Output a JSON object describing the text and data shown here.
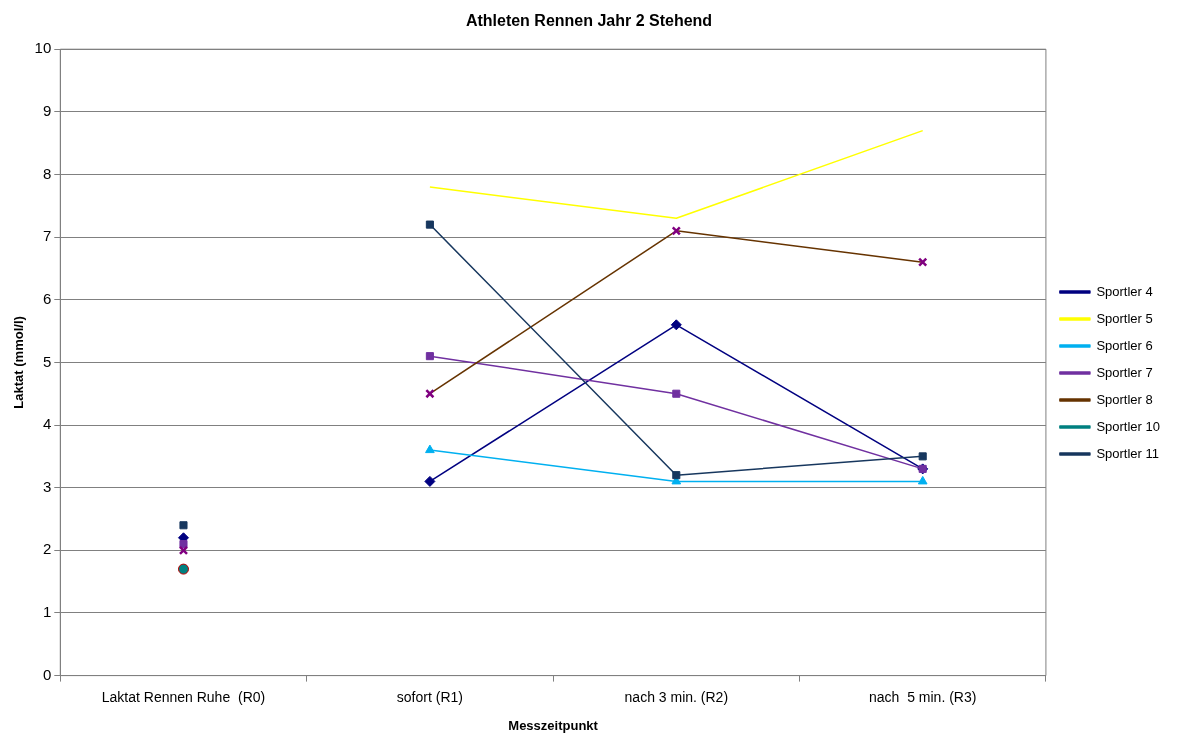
{
  "chart_data": {
    "type": "line",
    "title": "Athleten Rennen Jahr 2 Stehend",
    "xlabel": "Messzeitpunkt",
    "ylabel": "Laktat (mmol/l)",
    "categories": [
      "Laktat Rennen Ruhe  (R0)",
      "sofort (R1)",
      "nach 3 min. (R2)",
      "nach  5 min. (R3)"
    ],
    "ylim": [
      0,
      10
    ],
    "yticks": [
      0,
      1,
      2,
      3,
      4,
      5,
      6,
      7,
      8,
      9,
      10
    ],
    "grid": "y",
    "legend": "right",
    "series": [
      {
        "name": "Sportler 4",
        "color": "#000080",
        "marker": "diamond",
        "values": [
          null,
          3.1,
          5.6,
          3.3
        ]
      },
      {
        "name": "Sportler 5",
        "color": "#ffff00",
        "marker": "none",
        "values": [
          null,
          7.8,
          7.3,
          8.7
        ]
      },
      {
        "name": "Sportler 6",
        "color": "#00b0f0",
        "marker": "triangle",
        "values": [
          null,
          3.6,
          3.1,
          3.1
        ]
      },
      {
        "name": "Sportler 7",
        "color": "#7030a0",
        "marker": "square",
        "values": [
          null,
          5.1,
          4.5,
          3.3
        ]
      },
      {
        "name": "Sportler 8",
        "color": "#663300",
        "marker": "cross",
        "values": [
          null,
          4.5,
          7.1,
          6.6
        ]
      },
      {
        "name": "Sportler 10",
        "color": "#008080",
        "marker": "circle",
        "values": [
          null,
          null,
          null,
          null
        ]
      },
      {
        "name": "Sportler 11",
        "color": "#17375e",
        "marker": "square",
        "values": [
          null,
          7.2,
          3.2,
          3.5
        ]
      },
      {
        "type": "scatter",
        "color": "#000080",
        "marker": "diamond",
        "x": [
          "Laktat Rennen Ruhe  (R0)"
        ],
        "values": [
          2.2
        ]
      },
      {
        "type": "scatter",
        "color": "#7030a0",
        "marker": "square",
        "x": [
          "Laktat Rennen Ruhe  (R0)"
        ],
        "values": [
          2.1
        ]
      },
      {
        "type": "scatter",
        "color": "#800080",
        "marker": "cross",
        "x": [
          "Laktat Rennen Ruhe  (R0)"
        ],
        "values": [
          2.0
        ]
      },
      {
        "type": "scatter",
        "color": "#008080",
        "marker": "circle",
        "x": [
          "Laktat Rennen Ruhe  (R0)"
        ],
        "values": [
          1.7
        ]
      },
      {
        "type": "scatter",
        "color": "#17375e",
        "marker": "square",
        "x": [
          "Laktat Rennen Ruhe  (R0)"
        ],
        "values": [
          2.4
        ]
      }
    ]
  }
}
